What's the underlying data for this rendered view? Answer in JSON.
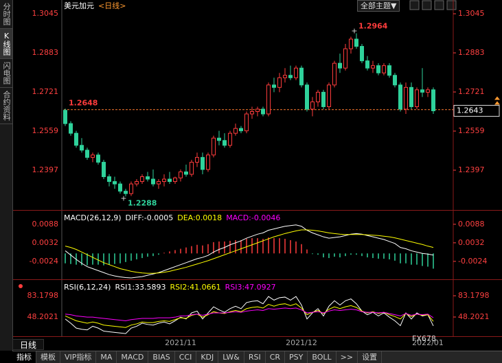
{
  "sidebar": [
    "分时图",
    "K线图",
    "闪电图",
    "合约资料"
  ],
  "toolbar": {
    "theme": "全部主题▼"
  },
  "period": "日线",
  "watermark": "FX678",
  "tabs": [
    "指标",
    "模板",
    "VIP指标",
    "MA",
    "MACD",
    "BIAS",
    "CCI",
    "KDJ",
    "LW&",
    "RSI",
    "CR",
    "PSY",
    "BOLL",
    ">>",
    "设置"
  ],
  "chart_data": [
    {
      "type": "candlestick",
      "title": "美元加元",
      "subtitle": "<日线>",
      "categories": [
        null,
        null,
        null,
        null,
        null,
        null,
        null,
        null,
        null,
        null,
        null,
        null,
        null,
        null,
        null,
        null,
        null,
        null,
        null,
        null,
        null,
        "2021/11",
        null,
        null,
        null,
        null,
        null,
        null,
        null,
        null,
        null,
        null,
        null,
        null,
        null,
        null,
        null,
        null,
        null,
        null,
        null,
        null,
        null,
        "2021/12",
        null,
        null,
        null,
        null,
        null,
        null,
        null,
        null,
        null,
        null,
        null,
        null,
        null,
        null,
        null,
        null,
        null,
        null,
        null,
        null,
        null,
        null,
        "2022/01",
        null
      ],
      "open": [
        1.2645,
        1.259,
        1.255,
        1.25,
        1.248,
        1.245,
        1.246,
        1.243,
        1.237,
        1.235,
        1.234,
        1.231,
        1.23,
        1.234,
        1.235,
        1.237,
        1.236,
        1.234,
        1.235,
        1.236,
        1.235,
        1.2365,
        1.239,
        1.238,
        1.243,
        1.245,
        1.24,
        1.246,
        1.253,
        1.252,
        1.25,
        1.255,
        1.257,
        1.256,
        1.263,
        1.264,
        1.265,
        1.263,
        1.275,
        1.274,
        1.278,
        1.279,
        1.278,
        1.282,
        1.275,
        1.265,
        1.268,
        1.272,
        1.266,
        1.275,
        1.284,
        1.282,
        1.29,
        1.294,
        1.291,
        1.285,
        1.282,
        1.283,
        1.28,
        1.283,
        1.279,
        1.275,
        1.265,
        1.274,
        1.266,
        1.273,
        1.272,
        1.273
      ],
      "high": [
        1.2652,
        1.26,
        1.256,
        1.253,
        1.249,
        1.247,
        1.247,
        1.244,
        1.238,
        1.237,
        1.235,
        1.232,
        1.235,
        1.236,
        1.238,
        1.239,
        1.24,
        1.236,
        1.238,
        1.239,
        1.237,
        1.24,
        1.242,
        1.244,
        1.247,
        1.247,
        1.247,
        1.254,
        1.256,
        1.255,
        1.256,
        1.259,
        1.258,
        1.264,
        1.266,
        1.266,
        1.266,
        1.276,
        1.278,
        1.28,
        1.282,
        1.283,
        1.283,
        1.283,
        1.276,
        1.27,
        1.273,
        1.273,
        1.276,
        1.285,
        1.288,
        1.292,
        1.295,
        1.2964,
        1.292,
        1.287,
        1.285,
        1.284,
        1.284,
        1.284,
        1.28,
        1.276,
        1.276,
        1.276,
        1.274,
        1.282,
        1.274,
        1.274
      ],
      "low": [
        1.258,
        1.254,
        1.249,
        1.247,
        1.244,
        1.243,
        1.242,
        1.236,
        1.233,
        1.232,
        1.23,
        1.2288,
        1.229,
        1.233,
        1.234,
        1.235,
        1.233,
        1.232,
        1.233,
        1.234,
        1.234,
        1.235,
        1.237,
        1.237,
        1.241,
        1.238,
        1.239,
        1.245,
        1.25,
        1.249,
        1.249,
        1.254,
        1.255,
        1.255,
        1.261,
        1.262,
        1.262,
        1.262,
        1.272,
        1.272,
        1.276,
        1.277,
        1.277,
        1.274,
        1.264,
        1.262,
        1.266,
        1.265,
        1.265,
        1.274,
        1.28,
        1.281,
        1.288,
        1.29,
        1.284,
        1.281,
        1.28,
        1.279,
        1.279,
        1.278,
        1.274,
        1.264,
        1.263,
        1.265,
        1.265,
        1.27,
        1.27,
        1.263
      ],
      "close": [
        1.259,
        1.255,
        1.25,
        1.248,
        1.245,
        1.246,
        1.243,
        1.237,
        1.235,
        1.234,
        1.231,
        1.23,
        1.234,
        1.235,
        1.237,
        1.236,
        1.234,
        1.235,
        1.236,
        1.235,
        1.2365,
        1.239,
        1.238,
        1.243,
        1.245,
        1.24,
        1.246,
        1.253,
        1.252,
        1.25,
        1.255,
        1.257,
        1.256,
        1.263,
        1.264,
        1.265,
        1.263,
        1.275,
        1.274,
        1.278,
        1.279,
        1.278,
        1.282,
        1.275,
        1.265,
        1.268,
        1.272,
        1.266,
        1.275,
        1.284,
        1.282,
        1.29,
        1.294,
        1.291,
        1.285,
        1.282,
        1.283,
        1.28,
        1.283,
        1.279,
        1.275,
        1.265,
        1.274,
        1.266,
        1.273,
        1.272,
        1.273,
        1.2643
      ],
      "up_color": "#ff3c3c",
      "down_color": "#2fd29b",
      "ylim": [
        1.2235,
        1.3102
      ],
      "yticks": [
        1.2397,
        1.2559,
        1.2721,
        1.2883,
        1.3045
      ],
      "annotations": [
        {
          "x": 53,
          "value": 1.2964,
          "color": "#ff3c3c"
        },
        {
          "x": 11,
          "value": 1.2288,
          "color": "#2fd29b"
        }
      ],
      "reference_line": 1.2648,
      "last_price": 1.2643
    },
    {
      "type": "macd",
      "title": "MACD(26,12,9)",
      "ylim": [
        -0.0074,
        0.0127
      ],
      "yticks": [
        -0.0024,
        0.0032,
        0.0088
      ],
      "series": [
        {
          "name": "DIFF:-0.0005",
          "color": "#ffffff",
          "values": [
            0.0008,
            -0.0005,
            -0.0018,
            -0.003,
            -0.004,
            -0.0046,
            -0.0052,
            -0.0058,
            -0.0064,
            -0.0068,
            -0.0071,
            -0.0073,
            -0.0074,
            -0.0072,
            -0.007,
            -0.0066,
            -0.0062,
            -0.0058,
            -0.0052,
            -0.0046,
            -0.004,
            -0.0034,
            -0.0028,
            -0.0022,
            -0.0016,
            -0.0012,
            -0.0006,
            0.0004,
            0.0012,
            0.0018,
            0.0026,
            0.0032,
            0.0038,
            0.0046,
            0.0052,
            0.0058,
            0.0062,
            0.007,
            0.0074,
            0.0078,
            0.0082,
            0.0084,
            0.0086,
            0.0082,
            0.007,
            0.0062,
            0.0056,
            0.005,
            0.0046,
            0.0048,
            0.005,
            0.0054,
            0.0058,
            0.006,
            0.0058,
            0.0054,
            0.005,
            0.0046,
            0.0042,
            0.0036,
            0.003,
            0.0018,
            0.0014,
            0.0008,
            0.0004,
            0.0,
            -0.0002,
            -0.0005
          ]
        },
        {
          "name": "DEA:0.0018",
          "color": "#ffff00",
          "values": [
            0.0022,
            0.0018,
            0.0012,
            0.0004,
            -0.0004,
            -0.0012,
            -0.002,
            -0.0028,
            -0.0034,
            -0.004,
            -0.0046,
            -0.005,
            -0.0054,
            -0.0057,
            -0.0059,
            -0.006,
            -0.006,
            -0.0059,
            -0.0057,
            -0.0054,
            -0.005,
            -0.0046,
            -0.0042,
            -0.0037,
            -0.0032,
            -0.0027,
            -0.0022,
            -0.0016,
            -0.001,
            -0.0004,
            0.0002,
            0.0008,
            0.0014,
            0.002,
            0.0026,
            0.0032,
            0.0038,
            0.0044,
            0.005,
            0.0055,
            0.006,
            0.0064,
            0.0068,
            0.0071,
            0.0071,
            0.007,
            0.0068,
            0.0065,
            0.0062,
            0.006,
            0.0058,
            0.0057,
            0.0057,
            0.0057,
            0.0057,
            0.0056,
            0.0055,
            0.0054,
            0.0052,
            0.005,
            0.0047,
            0.0043,
            0.0039,
            0.0035,
            0.0031,
            0.0027,
            0.0022,
            0.0018
          ]
        },
        {
          "name": "MACD:-0.0046",
          "color": "#ff00ff",
          "type": "bar",
          "up_color": "#ff3c3c",
          "down_color": "#2fd29b",
          "values": [
            -0.003,
            -0.0032,
            -0.0034,
            -0.0036,
            -0.0036,
            -0.0034,
            -0.0034,
            -0.0036,
            -0.0034,
            -0.0032,
            -0.003,
            -0.0026,
            -0.0022,
            -0.0018,
            -0.0014,
            -0.001,
            -0.0008,
            -0.0004,
            0.0002,
            0.0006,
            0.001,
            0.0014,
            0.0018,
            0.0022,
            0.0026,
            0.0024,
            0.0028,
            0.0034,
            0.0036,
            0.0036,
            0.0038,
            0.004,
            0.004,
            0.0044,
            0.0046,
            0.0046,
            0.0044,
            0.0048,
            0.0046,
            0.0046,
            0.0044,
            0.004,
            0.0036,
            0.0028,
            0.0012,
            -0.0002,
            -0.0004,
            -0.0012,
            -0.0014,
            -0.001,
            -0.0012,
            -0.0008,
            -0.0004,
            -0.0004,
            -0.0008,
            -0.0012,
            -0.0014,
            -0.0016,
            -0.0016,
            -0.0018,
            -0.0022,
            -0.003,
            -0.003,
            -0.0034,
            -0.0034,
            -0.0038,
            -0.004,
            -0.0046
          ]
        }
      ]
    },
    {
      "type": "line",
      "title": "RSI(6,12,24)",
      "ylim": [
        16.6,
        106.9
      ],
      "yticks": [
        48.2021,
        83.1798
      ],
      "series": [
        {
          "name": "RSI1:33.5893",
          "color": "#ffffff",
          "values": [
            45,
            38,
            30,
            28,
            27,
            33,
            30,
            25,
            24,
            23,
            22,
            21,
            30,
            33,
            38,
            36,
            35,
            38,
            40,
            37,
            42,
            48,
            45,
            55,
            58,
            45,
            55,
            65,
            60,
            56,
            62,
            66,
            62,
            72,
            74,
            75,
            70,
            82,
            76,
            80,
            81,
            76,
            82,
            68,
            45,
            55,
            62,
            50,
            66,
            75,
            68,
            75,
            78,
            70,
            58,
            52,
            56,
            50,
            55,
            48,
            42,
            34,
            55,
            45,
            55,
            50,
            52,
            33.5893
          ]
        },
        {
          "name": "RSI2:41.0661",
          "color": "#ffff00",
          "values": [
            50,
            46,
            42,
            40,
            38,
            40,
            38,
            35,
            34,
            33,
            32,
            31,
            35,
            37,
            40,
            39,
            39,
            41,
            42,
            41,
            44,
            47,
            46,
            51,
            53,
            48,
            52,
            57,
            55,
            54,
            57,
            59,
            57,
            62,
            64,
            65,
            63,
            69,
            66,
            69,
            70,
            67,
            70,
            63,
            52,
            56,
            59,
            54,
            61,
            65,
            62,
            65,
            67,
            64,
            58,
            55,
            57,
            54,
            56,
            52,
            49,
            45,
            54,
            49,
            53,
            51,
            52,
            41.0661
          ]
        },
        {
          "name": "RSI3:47.0927",
          "color": "#ff00ff",
          "values": [
            53,
            52,
            50,
            49,
            48,
            48,
            47,
            46,
            45,
            44,
            43,
            42,
            44,
            45,
            46,
            46,
            46,
            47,
            47,
            47,
            48,
            50,
            50,
            52,
            53,
            51,
            53,
            55,
            55,
            55,
            56,
            57,
            56,
            58,
            59,
            60,
            59,
            62,
            61,
            62,
            63,
            62,
            63,
            60,
            55,
            56,
            57,
            55,
            58,
            60,
            59,
            60,
            61,
            60,
            57,
            56,
            56,
            55,
            56,
            54,
            52,
            50,
            54,
            51,
            53,
            52,
            53,
            47.0927
          ]
        }
      ]
    }
  ]
}
